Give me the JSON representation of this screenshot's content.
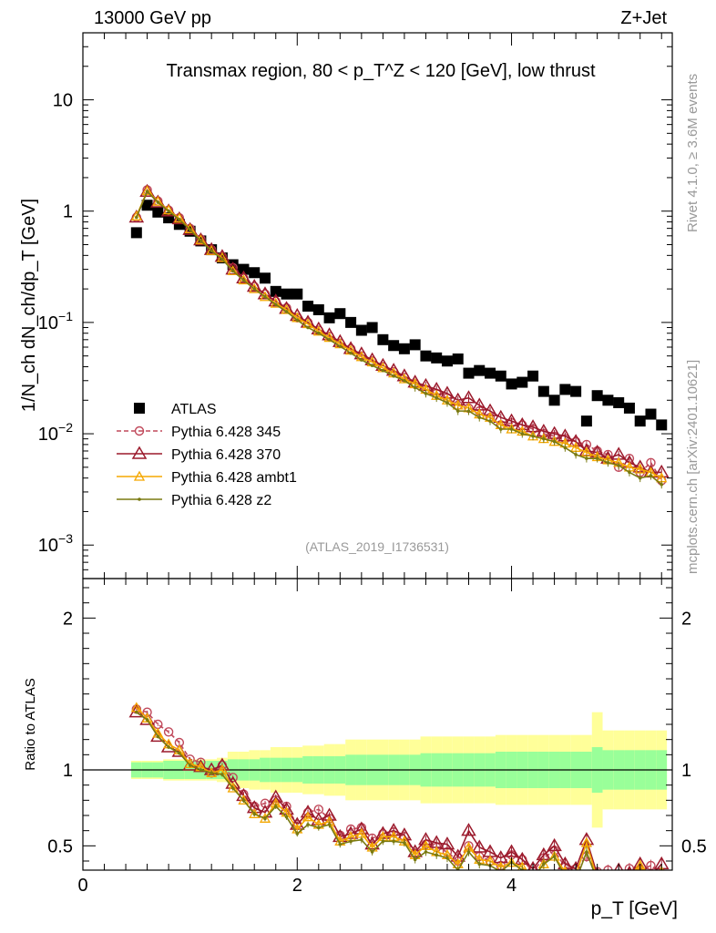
{
  "header": {
    "left": "13000 GeV pp",
    "right": "Z+Jet"
  },
  "side": {
    "rivet": "Rivet 4.1.0, ≥ 3.6M events",
    "mcplots": "mcplots.cern.ch [arXiv:2401.10621]"
  },
  "colors": {
    "atlas": "#000000",
    "p345": "#c0485a",
    "p370": "#9b1a2c",
    "ambt1": "#f5a800",
    "z2": "#7a7a10",
    "band_inner": "#99ff99",
    "band_outer": "#ffff99"
  },
  "chart_data": [
    {
      "type": "scatter",
      "title": "Transmax region, 80 < p_T^Z < 120 [GeV], low thrust",
      "watermark": "(ATLAS_2019_I1736531)",
      "xlabel": "",
      "ylabel": "1/N_ch dN_ch/dp_T [GeV]",
      "xlim": [
        0,
        5.5
      ],
      "ylim": [
        0.0005,
        40
      ],
      "yscale": "log",
      "yticks": [
        {
          "v": 0.001,
          "l": "10",
          "e": "−3"
        },
        {
          "v": 0.01,
          "l": "10",
          "e": "−2"
        },
        {
          "v": 0.1,
          "l": "10",
          "e": "−1"
        },
        {
          "v": 1,
          "l": "1",
          "e": ""
        },
        {
          "v": 10,
          "l": "10",
          "e": ""
        }
      ],
      "legend": [
        "ATLAS",
        "Pythia 6.428 345",
        "Pythia 6.428 370",
        "Pythia 6.428 ambt1",
        "Pythia 6.428 z2"
      ],
      "x": [
        0.5,
        0.6,
        0.7,
        0.8,
        0.9,
        1.0,
        1.1,
        1.2,
        1.3,
        1.4,
        1.5,
        1.6,
        1.7,
        1.8,
        1.9,
        2.0,
        2.1,
        2.2,
        2.3,
        2.4,
        2.5,
        2.6,
        2.7,
        2.8,
        2.9,
        3.0,
        3.1,
        3.2,
        3.3,
        3.4,
        3.5,
        3.6,
        3.7,
        3.8,
        3.9,
        4.0,
        4.1,
        4.2,
        4.3,
        4.4,
        4.5,
        4.6,
        4.7,
        4.8,
        4.9,
        5.0,
        5.1,
        5.2,
        5.3,
        5.4
      ],
      "series": [
        {
          "name": "ATLAS",
          "values": [
            0.64,
            1.13,
            0.98,
            0.87,
            0.76,
            0.66,
            0.54,
            0.45,
            0.38,
            0.33,
            0.3,
            0.28,
            0.25,
            0.19,
            0.18,
            0.18,
            0.14,
            0.13,
            0.11,
            0.12,
            0.1,
            0.085,
            0.09,
            0.07,
            0.062,
            0.058,
            0.063,
            0.05,
            0.048,
            0.045,
            0.047,
            0.035,
            0.037,
            0.035,
            0.033,
            0.028,
            0.029,
            0.033,
            0.024,
            0.02,
            0.025,
            0.024,
            0.013,
            0.022,
            0.02,
            0.019,
            0.017,
            0.013,
            0.015,
            0.012
          ]
        },
        {
          "name": "Pythia 6.428 345",
          "values": [
            0.88,
            1.55,
            1.23,
            1.02,
            0.87,
            0.7,
            0.56,
            0.45,
            0.39,
            0.31,
            0.25,
            0.21,
            0.18,
            0.155,
            0.135,
            0.11,
            0.1,
            0.085,
            0.075,
            0.065,
            0.058,
            0.05,
            0.045,
            0.04,
            0.036,
            0.032,
            0.028,
            0.025,
            0.023,
            0.021,
            0.018,
            0.017,
            0.016,
            0.014,
            0.012,
            0.0125,
            0.012,
            0.011,
            0.01,
            0.0095,
            0.009,
            0.0085,
            0.008,
            0.007,
            0.0065,
            0.005,
            0.006,
            0.0045,
            0.0055,
            0.0038
          ]
        },
        {
          "name": "Pythia 6.428 370",
          "values": [
            0.88,
            1.5,
            1.2,
            1.0,
            0.85,
            0.68,
            0.55,
            0.45,
            0.39,
            0.3,
            0.25,
            0.21,
            0.18,
            0.155,
            0.133,
            0.115,
            0.1,
            0.087,
            0.077,
            0.067,
            0.058,
            0.052,
            0.046,
            0.041,
            0.037,
            0.033,
            0.029,
            0.027,
            0.025,
            0.023,
            0.02,
            0.021,
            0.018,
            0.016,
            0.014,
            0.013,
            0.012,
            0.0115,
            0.0105,
            0.01,
            0.0095,
            0.0085,
            0.007,
            0.0068,
            0.006,
            0.0065,
            0.0055,
            0.005,
            0.0045,
            0.0045
          ]
        },
        {
          "name": "Pythia 6.428 ambt1",
          "values": [
            0.9,
            1.52,
            1.22,
            1.02,
            0.86,
            0.69,
            0.55,
            0.44,
            0.38,
            0.29,
            0.24,
            0.2,
            0.17,
            0.148,
            0.13,
            0.11,
            0.097,
            0.083,
            0.073,
            0.064,
            0.056,
            0.049,
            0.044,
            0.039,
            0.035,
            0.031,
            0.028,
            0.025,
            0.022,
            0.02,
            0.018,
            0.017,
            0.015,
            0.014,
            0.012,
            0.011,
            0.0105,
            0.0095,
            0.009,
            0.0085,
            0.0082,
            0.0075,
            0.0068,
            0.0062,
            0.0058,
            0.0055,
            0.005,
            0.0048,
            0.0045,
            0.004
          ]
        },
        {
          "name": "Pythia 6.428 z2",
          "values": [
            0.88,
            1.5,
            1.2,
            1.0,
            0.84,
            0.68,
            0.54,
            0.44,
            0.37,
            0.29,
            0.24,
            0.2,
            0.17,
            0.145,
            0.125,
            0.105,
            0.09,
            0.08,
            0.07,
            0.061,
            0.053,
            0.046,
            0.041,
            0.037,
            0.033,
            0.03,
            0.026,
            0.023,
            0.021,
            0.019,
            0.016,
            0.016,
            0.014,
            0.013,
            0.011,
            0.011,
            0.01,
            0.0095,
            0.009,
            0.0085,
            0.0075,
            0.0065,
            0.006,
            0.006,
            0.0055,
            0.0052,
            0.0045,
            0.004,
            0.0042,
            0.0035
          ]
        }
      ]
    },
    {
      "type": "line",
      "title": "",
      "xlabel": "p_T [GeV]",
      "ylabel": "Ratio to ATLAS",
      "xlim": [
        0,
        5.5
      ],
      "ylim": [
        0.34,
        2.26
      ],
      "xticks": [
        0,
        2,
        4
      ],
      "yticks": [
        0.5,
        1,
        2
      ],
      "reference": 1,
      "band_inner": [
        0.05,
        0.05,
        0.05,
        0.06,
        0.06,
        0.06,
        0.06,
        0.06,
        0.06,
        0.07,
        0.07,
        0.07,
        0.08,
        0.08,
        0.08,
        0.08,
        0.09,
        0.09,
        0.09,
        0.09,
        0.1,
        0.1,
        0.1,
        0.1,
        0.1,
        0.1,
        0.1,
        0.11,
        0.11,
        0.11,
        0.11,
        0.11,
        0.11,
        0.11,
        0.12,
        0.12,
        0.12,
        0.12,
        0.12,
        0.12,
        0.12,
        0.12,
        0.12,
        0.15,
        0.13,
        0.13,
        0.13,
        0.13,
        0.13,
        0.13
      ],
      "band_outer": [
        0.06,
        0.06,
        0.06,
        0.07,
        0.07,
        0.07,
        0.07,
        0.07,
        0.08,
        0.12,
        0.12,
        0.13,
        0.13,
        0.15,
        0.15,
        0.15,
        0.16,
        0.16,
        0.17,
        0.17,
        0.2,
        0.2,
        0.2,
        0.2,
        0.2,
        0.2,
        0.2,
        0.22,
        0.22,
        0.22,
        0.22,
        0.22,
        0.22,
        0.22,
        0.23,
        0.23,
        0.23,
        0.23,
        0.23,
        0.23,
        0.23,
        0.23,
        0.23,
        0.38,
        0.26,
        0.26,
        0.26,
        0.26,
        0.26,
        0.26
      ],
      "series": [
        {
          "name": "Pythia 6.428 345",
          "values": [
            1.4,
            1.38,
            1.3,
            1.25,
            1.18,
            1.07,
            1.05,
            0.98,
            1.03,
            0.95,
            0.84,
            0.76,
            0.78,
            0.8,
            0.76,
            0.64,
            0.72,
            0.74,
            0.68,
            0.57,
            0.61,
            0.62,
            0.55,
            0.58,
            0.59,
            0.56,
            0.45,
            0.51,
            0.49,
            0.46,
            0.4,
            0.5,
            0.43,
            0.4,
            0.37,
            0.44,
            0.41,
            0.33,
            0.42,
            0.47,
            0.36,
            0.35,
            0.43,
            0.33,
            0.34,
            0.26,
            0.35,
            0.34,
            0.37,
            0.32
          ]
        },
        {
          "name": "Pythia 6.428 370",
          "values": [
            1.38,
            1.33,
            1.22,
            1.15,
            1.12,
            1.03,
            1.02,
            1.0,
            1.03,
            0.91,
            0.83,
            0.75,
            0.72,
            0.82,
            0.74,
            0.64,
            0.72,
            0.67,
            0.7,
            0.56,
            0.58,
            0.61,
            0.51,
            0.58,
            0.6,
            0.57,
            0.46,
            0.54,
            0.52,
            0.51,
            0.43,
            0.6,
            0.49,
            0.46,
            0.42,
            0.46,
            0.41,
            0.35,
            0.44,
            0.5,
            0.38,
            0.35,
            0.54,
            0.31,
            0.3,
            0.34,
            0.32,
            0.38,
            0.3,
            0.38
          ]
        },
        {
          "name": "Pythia 6.428 ambt1",
          "values": [
            1.41,
            1.34,
            1.24,
            1.17,
            1.13,
            1.04,
            1.02,
            0.98,
            1.0,
            0.88,
            0.8,
            0.71,
            0.68,
            0.78,
            0.72,
            0.61,
            0.69,
            0.64,
            0.66,
            0.53,
            0.56,
            0.58,
            0.49,
            0.56,
            0.56,
            0.53,
            0.44,
            0.5,
            0.46,
            0.44,
            0.38,
            0.49,
            0.41,
            0.4,
            0.36,
            0.39,
            0.36,
            0.29,
            0.38,
            0.43,
            0.33,
            0.31,
            0.52,
            0.28,
            0.29,
            0.29,
            0.29,
            0.37,
            0.3,
            0.33
          ]
        },
        {
          "name": "Pythia 6.428 z2",
          "values": [
            1.38,
            1.33,
            1.22,
            1.15,
            1.11,
            1.03,
            1.0,
            0.98,
            0.97,
            0.88,
            0.8,
            0.71,
            0.68,
            0.76,
            0.69,
            0.58,
            0.64,
            0.62,
            0.64,
            0.51,
            0.53,
            0.54,
            0.46,
            0.53,
            0.53,
            0.52,
            0.41,
            0.46,
            0.44,
            0.42,
            0.34,
            0.46,
            0.38,
            0.37,
            0.33,
            0.39,
            0.34,
            0.29,
            0.38,
            0.43,
            0.3,
            0.27,
            0.46,
            0.27,
            0.28,
            0.27,
            0.26,
            0.31,
            0.28,
            0.29
          ]
        }
      ]
    }
  ]
}
